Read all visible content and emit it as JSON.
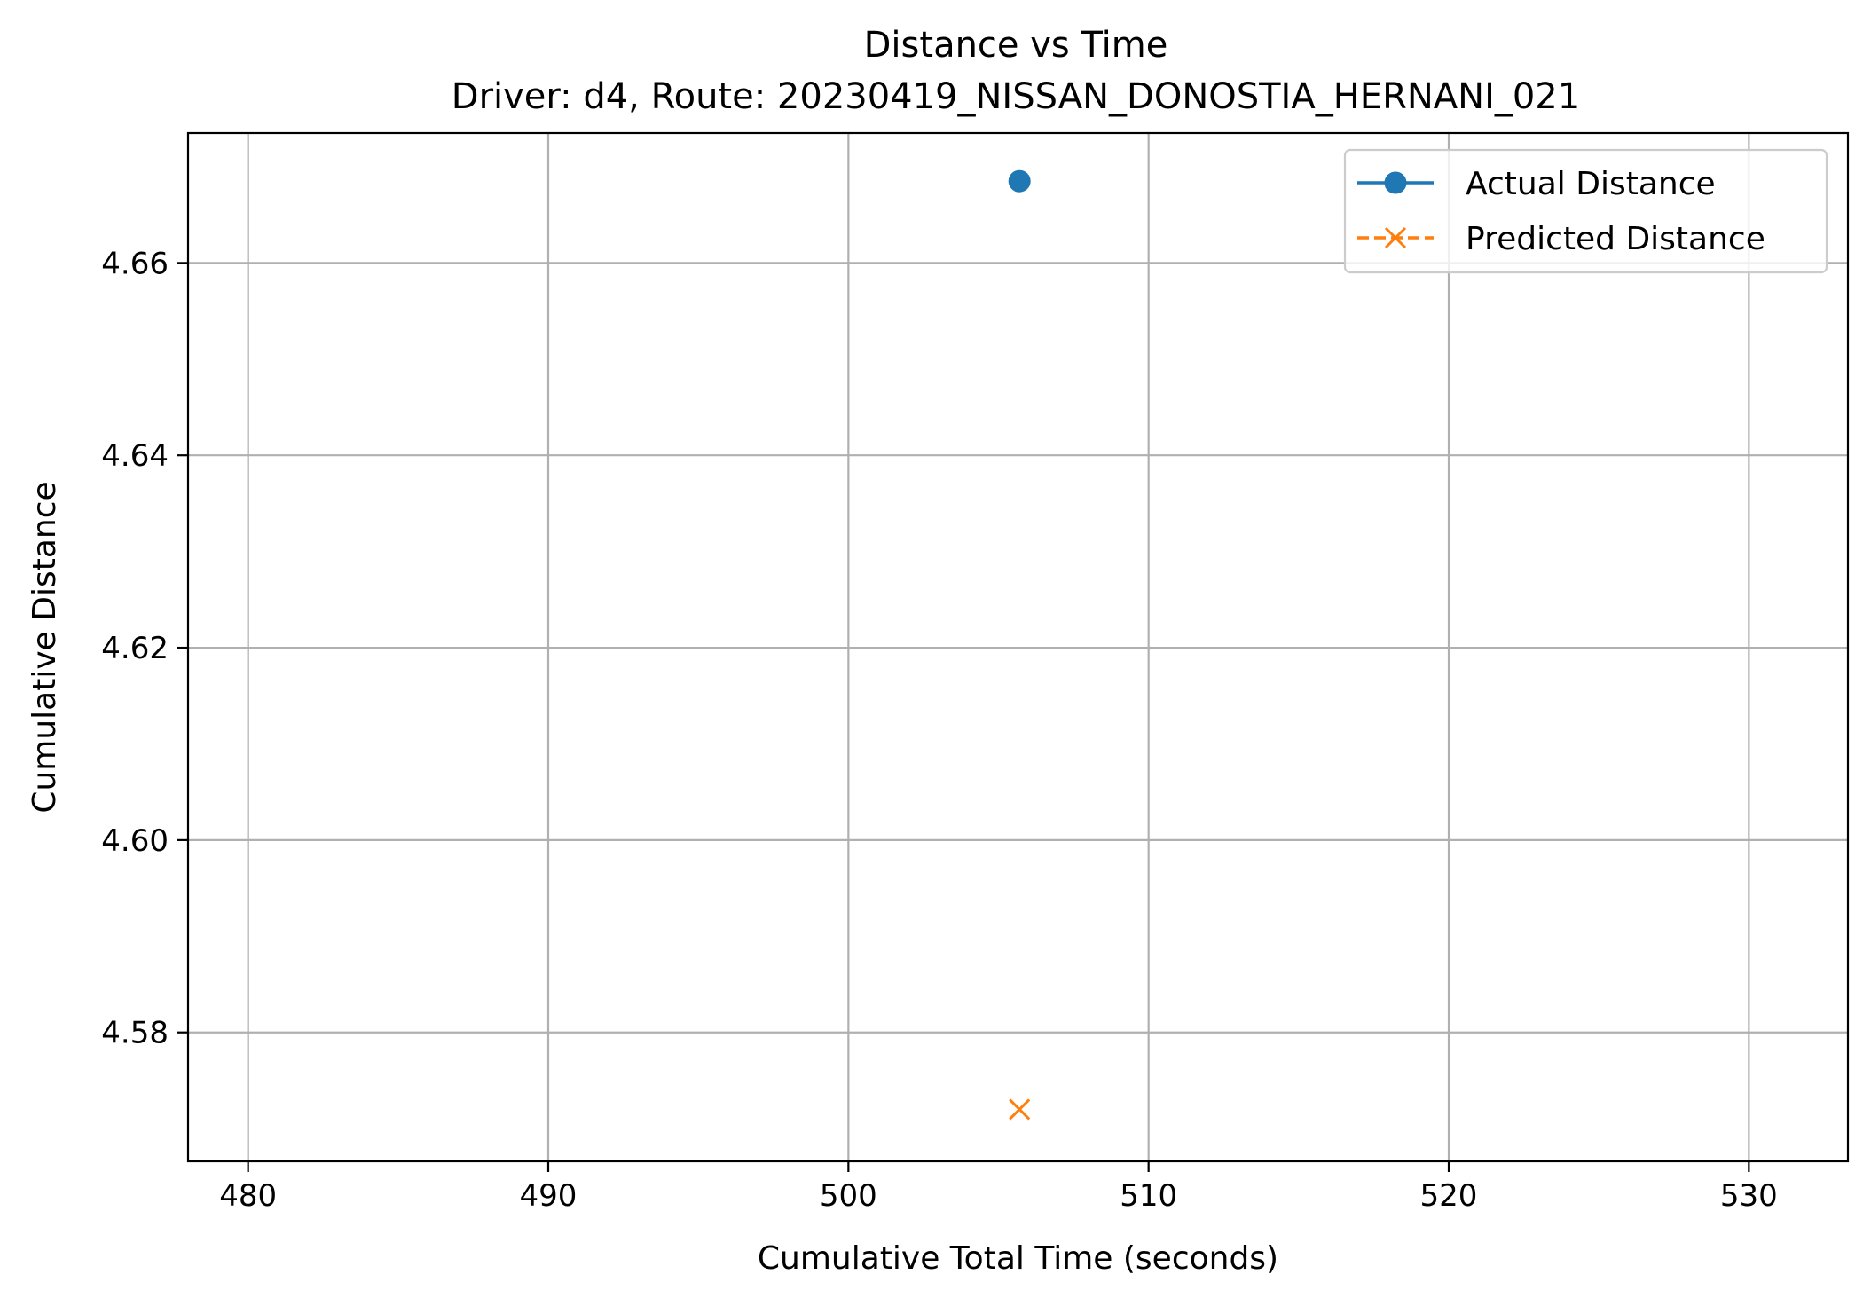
{
  "chart_data": {
    "type": "line",
    "title": "Distance vs Time",
    "subtitle": "Driver: d4, Route: 20230419_NISSAN_DONOSTIA_HERNANI_021",
    "xlabel": "Cumulative Total Time (seconds)",
    "ylabel": "Cumulative Distance",
    "xlim": [
      478,
      533.3
    ],
    "ylim": [
      4.5666,
      4.6735
    ],
    "x_ticks": [
      480,
      490,
      500,
      510,
      520,
      530
    ],
    "x_tick_labels": [
      "480",
      "490",
      "500",
      "510",
      "520",
      "530"
    ],
    "y_ticks": [
      4.58,
      4.6,
      4.62,
      4.64,
      4.66
    ],
    "y_tick_labels": [
      "4.58",
      "4.60",
      "4.62",
      "4.64",
      "4.66"
    ],
    "grid": true,
    "legend_position": "top-right",
    "series": [
      {
        "name": "Actual Distance",
        "color": "#1f77b4",
        "marker": "circle",
        "linestyle": "solid",
        "points": [
          {
            "x": 505.7,
            "y": 4.6685
          }
        ]
      },
      {
        "name": "Predicted Distance",
        "color": "#ff7f0e",
        "marker": "x",
        "linestyle": "dashed",
        "points": [
          {
            "x": 505.7,
            "y": 4.572
          }
        ]
      }
    ]
  }
}
